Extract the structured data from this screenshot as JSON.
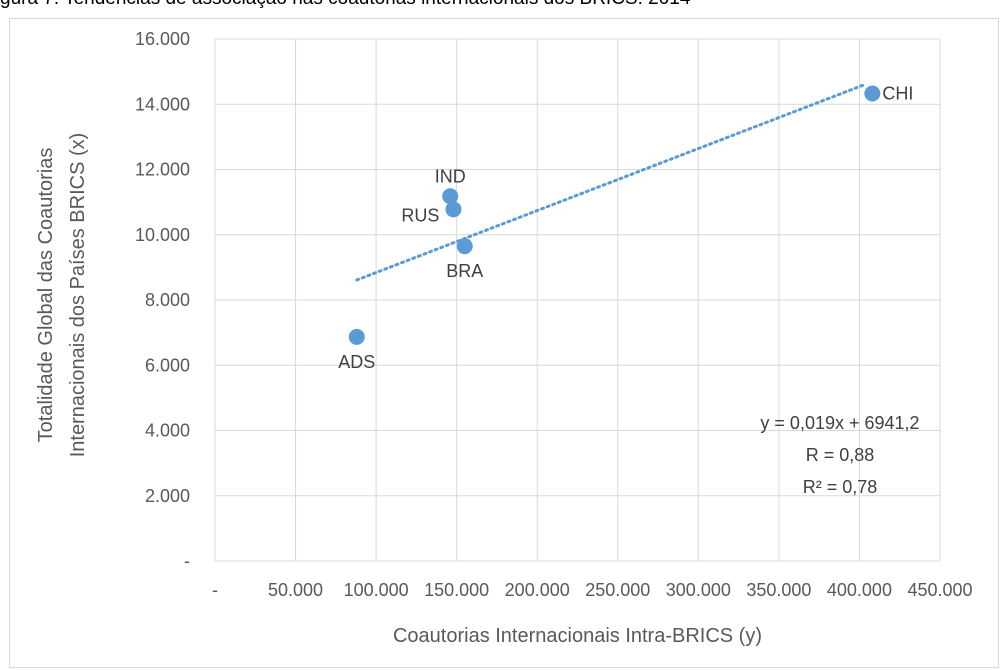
{
  "figure": {
    "caption": "gura 7.   Tendências de associação nas coautorias internacionais dos BRICS: 2014"
  },
  "chart_data": {
    "type": "scatter",
    "title": "",
    "xlabel": "Coautorias Internacionais Intra-BRICS (y)",
    "ylabel_lines": [
      "Totalidade Global das Coautorias",
      "Internacionais dos Países BRICS (x)"
    ],
    "xlim": [
      0,
      450000
    ],
    "ylim": [
      0,
      16000
    ],
    "x_tick_values": [
      0,
      50000,
      100000,
      150000,
      200000,
      250000,
      300000,
      350000,
      400000,
      450000
    ],
    "x_tick_labels": [
      "-",
      "50.000",
      "100.000",
      "150.000",
      "200.000",
      "250.000",
      "300.000",
      "350.000",
      "400.000",
      "450.000"
    ],
    "y_tick_values": [
      0,
      2000,
      4000,
      6000,
      8000,
      10000,
      12000,
      14000,
      16000
    ],
    "y_tick_labels": [
      "-",
      "2.000",
      "4.000",
      "6.000",
      "8.000",
      "10.000",
      "12.000",
      "14.000",
      "16.000"
    ],
    "grid": true,
    "point_color": "#5b9bd5",
    "trendline_color": "#5b9bd5",
    "points": [
      {
        "label": "ADS",
        "x": 88000,
        "y": 6870,
        "label_pos": "below"
      },
      {
        "label": "IND",
        "x": 146000,
        "y": 11180,
        "label_pos": "above"
      },
      {
        "label": "RUS",
        "x": 148000,
        "y": 10780,
        "label_pos": "left"
      },
      {
        "label": "BRA",
        "x": 155000,
        "y": 9650,
        "label_pos": "below"
      },
      {
        "label": "CHI",
        "x": 408000,
        "y": 14330,
        "label_pos": "right"
      }
    ],
    "trendline": {
      "x_start": 88000,
      "x_end": 402000,
      "slope": 0.019,
      "intercept": 6941.2
    },
    "annotations": [
      "y = 0,019x + 6941,2",
      "R = 0,88",
      "R² = 0,78"
    ]
  }
}
